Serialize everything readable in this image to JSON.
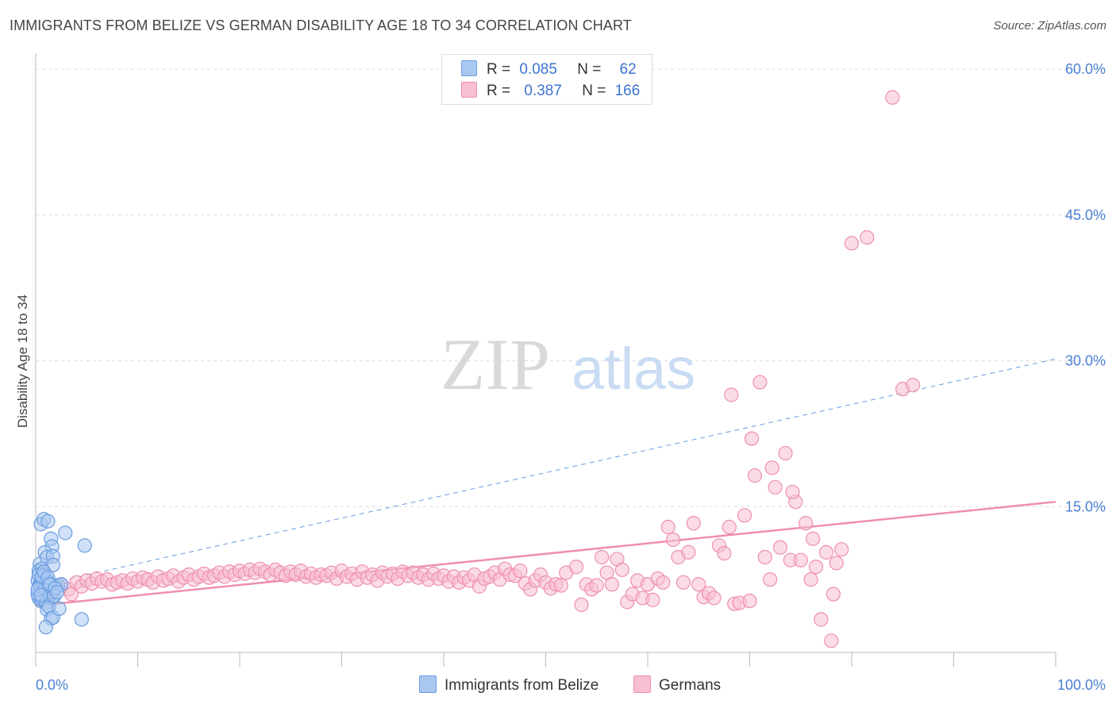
{
  "header": {
    "title": "IMMIGRANTS FROM BELIZE VS GERMAN DISABILITY AGE 18 TO 34 CORRELATION CHART",
    "source": "Source: ZipAtlas.com"
  },
  "watermark": {
    "zip": "ZIP",
    "atlas": "atlas"
  },
  "legend": {
    "rows": [
      {
        "r_label": "R =",
        "r_value": "0.085",
        "n_label": "N =",
        "n_value": "62",
        "color": "#a9c8f0",
        "border": "#6a9be0"
      },
      {
        "r_label": "R =",
        "r_value": "0.387",
        "n_label": "N =",
        "n_value": "166",
        "color": "#f8bfd0",
        "border": "#ee8fae"
      }
    ]
  },
  "bottom_legend": {
    "items": [
      {
        "label": "Immigrants from Belize",
        "color": "#a9c8f0",
        "border": "#6a9be0"
      },
      {
        "label": "Germans",
        "color": "#f8bfd0",
        "border": "#ee8fae"
      }
    ]
  },
  "chart_data": {
    "type": "scatter",
    "title": "IMMIGRANTS FROM BELIZE VS GERMAN DISABILITY AGE 18 TO 34 CORRELATION CHART",
    "xlabel": "",
    "ylabel": "Disability Age 18 to 34",
    "xlim": [
      0,
      100
    ],
    "ylim": [
      0,
      61
    ],
    "x_tick_labels": [
      "0.0%",
      "100.0%"
    ],
    "y_ticks": [
      15,
      30,
      45,
      60
    ],
    "y_tick_labels": [
      "15.0%",
      "30.0%",
      "45.0%",
      "60.0%"
    ],
    "grid": "horizontal dashed",
    "legend_placement": "top-center",
    "series": [
      {
        "name": "Immigrants from Belize",
        "color": "#6a9be0",
        "fill": "#a9c8f0",
        "trend": {
          "style": "dashed",
          "x": [
            0,
            100
          ],
          "y": [
            6.8,
            30.2
          ]
        },
        "points": [
          [
            0.5,
            13.2
          ],
          [
            0.8,
            13.7
          ],
          [
            1.2,
            13.5
          ],
          [
            1.5,
            11.7
          ],
          [
            1.6,
            10.9
          ],
          [
            0.4,
            9.1
          ],
          [
            0.9,
            10.3
          ],
          [
            1.1,
            9.8
          ],
          [
            1.7,
            9.9
          ],
          [
            1.7,
            9.0
          ],
          [
            0.3,
            8.4
          ],
          [
            0.6,
            8.6
          ],
          [
            0.7,
            8.0
          ],
          [
            1.0,
            7.6
          ],
          [
            1.3,
            7.2
          ],
          [
            0.2,
            7.4
          ],
          [
            0.4,
            7.0
          ],
          [
            0.5,
            6.7
          ],
          [
            0.6,
            6.4
          ],
          [
            0.8,
            6.2
          ],
          [
            0.9,
            6.0
          ],
          [
            1.0,
            5.8
          ],
          [
            1.2,
            6.3
          ],
          [
            1.4,
            6.6
          ],
          [
            1.5,
            6.1
          ],
          [
            1.6,
            5.7
          ],
          [
            1.8,
            6.4
          ],
          [
            2.0,
            6.8
          ],
          [
            2.2,
            6.9
          ],
          [
            2.5,
            7.0
          ],
          [
            0.3,
            5.6
          ],
          [
            0.5,
            5.3
          ],
          [
            0.6,
            5.5
          ],
          [
            0.8,
            5.6
          ],
          [
            1.0,
            5.1
          ],
          [
            1.1,
            4.4
          ],
          [
            1.3,
            4.7
          ],
          [
            1.5,
            3.5
          ],
          [
            1.7,
            3.6
          ],
          [
            1.0,
            2.6
          ],
          [
            2.3,
            4.5
          ],
          [
            4.5,
            3.4
          ],
          [
            4.8,
            11.0
          ],
          [
            2.9,
            12.3
          ],
          [
            0.2,
            6.0
          ],
          [
            0.4,
            6.8
          ],
          [
            0.7,
            7.2
          ],
          [
            0.9,
            6.5
          ],
          [
            1.1,
            7.3
          ],
          [
            1.3,
            6.9
          ],
          [
            1.4,
            5.9
          ],
          [
            1.6,
            6.2
          ],
          [
            1.8,
            5.8
          ],
          [
            0.3,
            8.0
          ],
          [
            0.6,
            7.8
          ],
          [
            0.8,
            8.3
          ],
          [
            1.2,
            7.7
          ],
          [
            1.4,
            7.0
          ],
          [
            0.2,
            6.5
          ],
          [
            0.5,
            5.9
          ],
          [
            1.9,
            6.6
          ],
          [
            2.1,
            6.2
          ]
        ]
      },
      {
        "name": "Germans",
        "color": "#ee8fae",
        "fill": "#f8bfd0",
        "trend": {
          "style": "solid",
          "x": [
            0,
            100
          ],
          "y": [
            4.8,
            15.5
          ]
        },
        "points": [
          [
            1.0,
            6.5
          ],
          [
            1.8,
            6.8
          ],
          [
            2.5,
            7.0
          ],
          [
            3.2,
            6.5
          ],
          [
            3.5,
            6.0
          ],
          [
            4.0,
            7.2
          ],
          [
            4.5,
            6.8
          ],
          [
            5.0,
            7.4
          ],
          [
            5.5,
            7.1
          ],
          [
            6.0,
            7.6
          ],
          [
            6.5,
            7.3
          ],
          [
            7.0,
            7.5
          ],
          [
            7.5,
            7.0
          ],
          [
            8.0,
            7.2
          ],
          [
            8.5,
            7.4
          ],
          [
            9.0,
            7.1
          ],
          [
            9.5,
            7.6
          ],
          [
            10.0,
            7.3
          ],
          [
            10.5,
            7.7
          ],
          [
            11.0,
            7.5
          ],
          [
            11.5,
            7.2
          ],
          [
            12.0,
            7.8
          ],
          [
            12.5,
            7.4
          ],
          [
            13.0,
            7.6
          ],
          [
            13.5,
            7.9
          ],
          [
            14.0,
            7.3
          ],
          [
            14.5,
            7.7
          ],
          [
            15.0,
            8.0
          ],
          [
            15.5,
            7.5
          ],
          [
            16.0,
            7.8
          ],
          [
            16.5,
            8.1
          ],
          [
            17.0,
            7.7
          ],
          [
            17.5,
            7.9
          ],
          [
            18.0,
            8.2
          ],
          [
            18.5,
            7.8
          ],
          [
            19.0,
            8.3
          ],
          [
            19.5,
            8.0
          ],
          [
            20.0,
            8.4
          ],
          [
            20.5,
            8.1
          ],
          [
            21.0,
            8.5
          ],
          [
            21.5,
            8.2
          ],
          [
            22.0,
            8.6
          ],
          [
            22.5,
            8.3
          ],
          [
            23.0,
            8.0
          ],
          [
            23.5,
            8.5
          ],
          [
            24.0,
            8.2
          ],
          [
            24.5,
            7.9
          ],
          [
            25.0,
            8.3
          ],
          [
            25.5,
            8.0
          ],
          [
            26.0,
            8.4
          ],
          [
            26.5,
            7.8
          ],
          [
            27.0,
            8.1
          ],
          [
            27.5,
            7.7
          ],
          [
            28.0,
            8.0
          ],
          [
            28.5,
            7.9
          ],
          [
            29.0,
            8.2
          ],
          [
            29.5,
            7.6
          ],
          [
            30.0,
            8.4
          ],
          [
            30.5,
            7.8
          ],
          [
            31.0,
            8.1
          ],
          [
            31.5,
            7.5
          ],
          [
            32.0,
            8.3
          ],
          [
            32.5,
            7.7
          ],
          [
            33.0,
            8.0
          ],
          [
            33.5,
            7.4
          ],
          [
            34.0,
            8.2
          ],
          [
            34.5,
            7.8
          ],
          [
            35.0,
            8.1
          ],
          [
            35.5,
            7.6
          ],
          [
            36.0,
            8.3
          ],
          [
            36.5,
            7.9
          ],
          [
            37.0,
            8.2
          ],
          [
            37.5,
            7.7
          ],
          [
            38.0,
            8.0
          ],
          [
            38.5,
            7.5
          ],
          [
            39.0,
            8.1
          ],
          [
            39.5,
            7.6
          ],
          [
            40.0,
            7.9
          ],
          [
            40.5,
            7.3
          ],
          [
            41.0,
            7.8
          ],
          [
            41.5,
            7.2
          ],
          [
            42.0,
            7.7
          ],
          [
            42.5,
            7.4
          ],
          [
            43.0,
            8.0
          ],
          [
            43.5,
            6.8
          ],
          [
            44.0,
            7.6
          ],
          [
            44.5,
            7.8
          ],
          [
            45.0,
            8.2
          ],
          [
            45.5,
            7.5
          ],
          [
            46.0,
            8.6
          ],
          [
            46.5,
            8.0
          ],
          [
            47.0,
            7.9
          ],
          [
            47.5,
            8.4
          ],
          [
            48.0,
            7.1
          ],
          [
            48.5,
            6.5
          ],
          [
            49.0,
            7.4
          ],
          [
            49.5,
            8.0
          ],
          [
            50.0,
            7.2
          ],
          [
            50.5,
            6.6
          ],
          [
            51.0,
            7.0
          ],
          [
            51.5,
            6.9
          ],
          [
            52.0,
            8.2
          ],
          [
            53.0,
            8.8
          ],
          [
            53.5,
            4.9
          ],
          [
            54.0,
            7.0
          ],
          [
            54.5,
            6.5
          ],
          [
            55.0,
            6.9
          ],
          [
            55.5,
            9.8
          ],
          [
            56.0,
            8.2
          ],
          [
            56.5,
            7.0
          ],
          [
            57.0,
            9.6
          ],
          [
            57.5,
            8.5
          ],
          [
            58.0,
            5.2
          ],
          [
            58.5,
            6.0
          ],
          [
            59.0,
            7.4
          ],
          [
            59.5,
            5.6
          ],
          [
            60.0,
            7.0
          ],
          [
            60.5,
            5.4
          ],
          [
            61.0,
            7.6
          ],
          [
            61.5,
            7.2
          ],
          [
            62.0,
            12.9
          ],
          [
            62.5,
            11.6
          ],
          [
            63.0,
            9.8
          ],
          [
            63.5,
            7.2
          ],
          [
            64.0,
            10.3
          ],
          [
            64.5,
            13.3
          ],
          [
            65.0,
            7.0
          ],
          [
            65.5,
            5.7
          ],
          [
            66.0,
            6.1
          ],
          [
            66.5,
            5.6
          ],
          [
            67.0,
            11.0
          ],
          [
            67.5,
            10.2
          ],
          [
            68.0,
            12.9
          ],
          [
            68.5,
            5.0
          ],
          [
            69.0,
            5.1
          ],
          [
            69.5,
            14.1
          ],
          [
            70.0,
            5.3
          ],
          [
            71.5,
            9.8
          ],
          [
            72.0,
            7.5
          ],
          [
            73.0,
            10.8
          ],
          [
            74.0,
            9.5
          ],
          [
            75.0,
            9.5
          ],
          [
            76.0,
            7.5
          ],
          [
            77.0,
            3.4
          ],
          [
            78.0,
            1.2
          ],
          [
            70.5,
            18.2
          ],
          [
            71.0,
            27.8
          ],
          [
            72.5,
            17.0
          ],
          [
            73.5,
            20.5
          ],
          [
            74.5,
            15.5
          ],
          [
            75.5,
            13.3
          ],
          [
            76.5,
            8.8
          ],
          [
            77.5,
            10.3
          ],
          [
            78.5,
            9.2
          ],
          [
            79.0,
            10.6
          ],
          [
            80.0,
            42.1
          ],
          [
            81.5,
            42.7
          ],
          [
            84.0,
            57.1
          ],
          [
            85.0,
            27.1
          ],
          [
            86.0,
            27.5
          ],
          [
            68.2,
            26.5
          ],
          [
            70.2,
            22.0
          ],
          [
            72.2,
            19.0
          ],
          [
            74.2,
            16.5
          ],
          [
            76.2,
            11.7
          ],
          [
            78.2,
            6.0
          ]
        ]
      }
    ]
  }
}
